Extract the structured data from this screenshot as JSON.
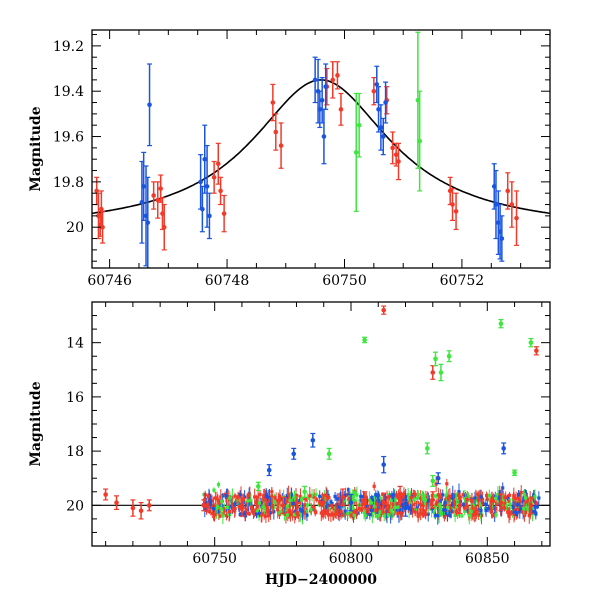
{
  "colors": {
    "red": "#f23a2a",
    "blue": "#1a55e0",
    "green": "#3ee63e",
    "curve": "#000000"
  },
  "chart_data": [
    {
      "type": "scatter",
      "xlabel": "",
      "ylabel": "Magnitude",
      "xlim": [
        60745.7,
        60753.5
      ],
      "ylim": [
        20.18,
        19.13
      ],
      "xticks": [
        60746,
        60748,
        60750,
        60752
      ],
      "yticks": [
        19.2,
        19.4,
        19.6,
        19.8,
        20
      ],
      "ytick_labels": [
        "19.2",
        "19.4",
        "19.6",
        "19.8",
        "20"
      ],
      "model_curve": {
        "type": "lorentzian",
        "peak_x": 60749.6,
        "peak_y": 19.35,
        "baseline": 20.02,
        "half_width": 1.45
      },
      "series": [
        {
          "color": "red",
          "points": [
            [
              60745.78,
              19.84,
              0.06
            ],
            [
              60745.81,
              19.95,
              0.1
            ],
            [
              60745.86,
              19.92,
              0.08
            ],
            [
              60745.88,
              20.0,
              0.07
            ],
            [
              60745.84,
              19.99,
              0.05
            ],
            [
              60746.75,
              19.86,
              0.06
            ],
            [
              60746.82,
              19.88,
              0.08
            ],
            [
              60746.87,
              19.83,
              0.06
            ],
            [
              60746.9,
              19.94,
              0.07
            ],
            [
              60746.93,
              20.0,
              0.1
            ],
            [
              60747.78,
              19.78,
              0.07
            ],
            [
              60747.85,
              19.72,
              0.09
            ],
            [
              60747.89,
              19.84,
              0.06
            ],
            [
              60747.95,
              19.94,
              0.08
            ],
            [
              60748.78,
              19.45,
              0.08
            ],
            [
              60748.83,
              19.58,
              0.08
            ],
            [
              60748.92,
              19.64,
              0.1
            ],
            [
              60749.7,
              19.38,
              0.08
            ],
            [
              60749.8,
              19.35,
              0.08
            ],
            [
              60749.88,
              19.33,
              0.06
            ],
            [
              60749.94,
              19.48,
              0.07
            ],
            [
              60750.5,
              19.4,
              0.06
            ],
            [
              60750.72,
              19.44,
              0.06
            ],
            [
              60750.82,
              19.65,
              0.07
            ],
            [
              60750.88,
              19.68,
              0.05
            ],
            [
              60750.92,
              19.71,
              0.08
            ],
            [
              60751.8,
              19.84,
              0.06
            ],
            [
              60751.84,
              19.9,
              0.07
            ],
            [
              60751.9,
              19.93,
              0.08
            ],
            [
              60752.78,
              19.84,
              0.08
            ],
            [
              60752.85,
              19.9,
              0.1
            ],
            [
              60752.93,
              19.96,
              0.12
            ]
          ]
        },
        {
          "color": "blue",
          "points": [
            [
              60746.55,
              19.89,
              0.18
            ],
            [
              60746.58,
              19.82,
              0.15
            ],
            [
              60746.62,
              19.95,
              0.22
            ],
            [
              60746.65,
              19.98,
              0.2
            ],
            [
              60746.68,
              19.46,
              0.18
            ],
            [
              60747.55,
              19.8,
              0.12
            ],
            [
              60747.58,
              19.92,
              0.1
            ],
            [
              60747.62,
              19.7,
              0.15
            ],
            [
              60747.66,
              19.82,
              0.18
            ],
            [
              60747.7,
              19.95,
              0.1
            ],
            [
              60749.5,
              19.35,
              0.1
            ],
            [
              60749.55,
              19.4,
              0.14
            ],
            [
              60749.58,
              19.48,
              0.08
            ],
            [
              60749.62,
              19.44,
              0.1
            ],
            [
              60749.65,
              19.6,
              0.12
            ],
            [
              60749.68,
              19.38,
              0.1
            ],
            [
              60750.55,
              19.37,
              0.08
            ],
            [
              60750.58,
              19.48,
              0.1
            ],
            [
              60750.62,
              19.56,
              0.1
            ],
            [
              60750.66,
              19.6,
              0.08
            ],
            [
              60750.7,
              19.45,
              0.09
            ],
            [
              60752.55,
              19.82,
              0.1
            ],
            [
              60752.58,
              19.9,
              0.15
            ],
            [
              60752.62,
              19.98,
              0.14
            ],
            [
              60752.65,
              20.02,
              0.12
            ],
            [
              60752.68,
              20.05,
              0.1
            ]
          ]
        },
        {
          "color": "green",
          "points": [
            [
              60750.2,
              19.67,
              0.26
            ],
            [
              60750.25,
              19.55,
              0.14
            ],
            [
              60751.25,
              19.44,
              0.3
            ],
            [
              60751.28,
              19.62,
              0.22
            ]
          ]
        }
      ]
    },
    {
      "type": "scatter",
      "xlabel": "HJD−2400000",
      "ylabel": "Magnitude",
      "xlim": [
        60705,
        60873
      ],
      "ylim": [
        21.5,
        12.5
      ],
      "xticks": [
        60750,
        60800,
        60850
      ],
      "yticks": [
        14,
        16,
        18,
        20
      ],
      "ytick_labels": [
        "14",
        "16",
        "18",
        "20"
      ],
      "baseline_mag": 20.0,
      "series": [
        {
          "color": "red",
          "points": [
            [
              60710,
              19.6,
              0.2
            ],
            [
              60714,
              19.9,
              0.25
            ],
            [
              60720,
              20.1,
              0.3
            ],
            [
              60723,
              20.2,
              0.3
            ],
            [
              60726,
              20.0,
              0.2
            ],
            [
              60746,
              20.0,
              0.2
            ],
            [
              60760,
              20.1,
              0.3
            ],
            [
              60775,
              20.0,
              0.3
            ],
            [
              60790,
              19.9,
              0.3
            ],
            [
              60797,
              19.7,
              0.3
            ],
            [
              60805,
              19.8,
              0.3
            ],
            [
              60812,
              19.9,
              0.35
            ],
            [
              60818,
              19.6,
              0.3
            ],
            [
              60830,
              19.8,
              0.3
            ],
            [
              60840,
              20.0,
              0.3
            ],
            [
              60855,
              19.9,
              0.3
            ],
            [
              60866,
              20.0,
              0.3
            ],
            [
              60812,
              12.8,
              0.15
            ],
            [
              60830,
              15.1,
              0.25
            ],
            [
              60868,
              14.3,
              0.15
            ]
          ]
        },
        {
          "color": "blue",
          "points": [
            [
              60770,
              18.7,
              0.2
            ],
            [
              60779,
              18.1,
              0.2
            ],
            [
              60786,
              17.6,
              0.25
            ],
            [
              60812,
              18.5,
              0.3
            ],
            [
              60832,
              19.0,
              0.2
            ],
            [
              60856,
              17.9,
              0.2
            ],
            [
              60800,
              19.9,
              0.3
            ],
            [
              60820,
              20.1,
              0.3
            ]
          ]
        },
        {
          "color": "green",
          "points": [
            [
              60766,
              19.3,
              0.15
            ],
            [
              60792,
              18.1,
              0.2
            ],
            [
              60805,
              13.9,
              0.1
            ],
            [
              60828,
              17.9,
              0.2
            ],
            [
              60831,
              14.6,
              0.25
            ],
            [
              60833,
              15.1,
              0.3
            ],
            [
              60836,
              14.5,
              0.2
            ],
            [
              60855,
              13.3,
              0.15
            ],
            [
              60866,
              14.0,
              0.15
            ],
            [
              60860,
              18.8,
              0.1
            ],
            [
              60830,
              19.1,
              0.2
            ],
            [
              60783,
              19.5,
              0.2
            ]
          ]
        }
      ]
    }
  ]
}
